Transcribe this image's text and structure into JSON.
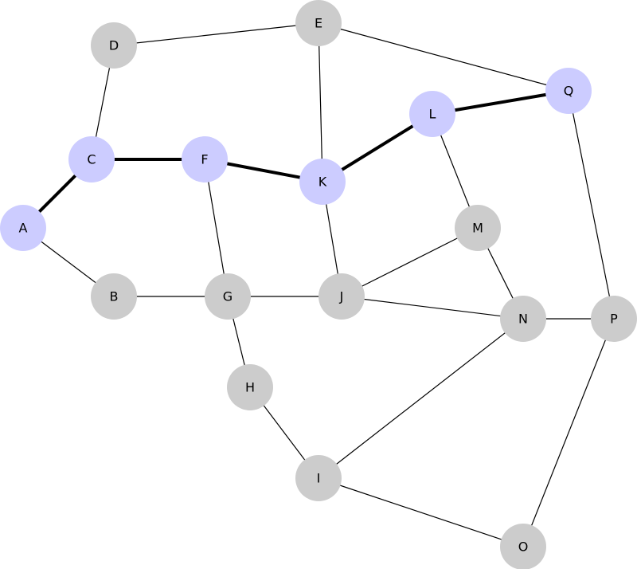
{
  "graph": {
    "colors": {
      "node_default": "#cccccc",
      "node_highlight": "#ccccff",
      "edge": "#000000"
    },
    "nodes": [
      {
        "id": "A",
        "label": "A",
        "highlighted": true
      },
      {
        "id": "B",
        "label": "B",
        "highlighted": false
      },
      {
        "id": "C",
        "label": "C",
        "highlighted": true
      },
      {
        "id": "D",
        "label": "D",
        "highlighted": false
      },
      {
        "id": "E",
        "label": "E",
        "highlighted": false
      },
      {
        "id": "F",
        "label": "F",
        "highlighted": true
      },
      {
        "id": "G",
        "label": "G",
        "highlighted": false
      },
      {
        "id": "H",
        "label": "H",
        "highlighted": false
      },
      {
        "id": "I",
        "label": "I",
        "highlighted": false
      },
      {
        "id": "J",
        "label": "J",
        "highlighted": false
      },
      {
        "id": "K",
        "label": "K",
        "highlighted": true
      },
      {
        "id": "L",
        "label": "L",
        "highlighted": true
      },
      {
        "id": "M",
        "label": "M",
        "highlighted": false
      },
      {
        "id": "N",
        "label": "N",
        "highlighted": false
      },
      {
        "id": "O",
        "label": "O",
        "highlighted": false
      },
      {
        "id": "P",
        "label": "P",
        "highlighted": false
      },
      {
        "id": "Q",
        "label": "Q",
        "highlighted": true
      }
    ],
    "edges": [
      {
        "from": "A",
        "to": "B",
        "highlighted": false
      },
      {
        "from": "A",
        "to": "C",
        "highlighted": true
      },
      {
        "from": "C",
        "to": "D",
        "highlighted": false
      },
      {
        "from": "C",
        "to": "F",
        "highlighted": true
      },
      {
        "from": "D",
        "to": "E",
        "highlighted": false
      },
      {
        "from": "E",
        "to": "Q",
        "highlighted": false
      },
      {
        "from": "E",
        "to": "K",
        "highlighted": false
      },
      {
        "from": "F",
        "to": "K",
        "highlighted": true
      },
      {
        "from": "F",
        "to": "G",
        "highlighted": false
      },
      {
        "from": "K",
        "to": "L",
        "highlighted": true
      },
      {
        "from": "L",
        "to": "Q",
        "highlighted": true
      },
      {
        "from": "L",
        "to": "M",
        "highlighted": false
      },
      {
        "from": "K",
        "to": "J",
        "highlighted": false
      },
      {
        "from": "B",
        "to": "G",
        "highlighted": false
      },
      {
        "from": "G",
        "to": "J",
        "highlighted": false
      },
      {
        "from": "G",
        "to": "H",
        "highlighted": false
      },
      {
        "from": "H",
        "to": "I",
        "highlighted": false
      },
      {
        "from": "I",
        "to": "N",
        "highlighted": false
      },
      {
        "from": "I",
        "to": "O",
        "highlighted": false
      },
      {
        "from": "J",
        "to": "M",
        "highlighted": false
      },
      {
        "from": "J",
        "to": "N",
        "highlighted": false
      },
      {
        "from": "M",
        "to": "N",
        "highlighted": false
      },
      {
        "from": "N",
        "to": "P",
        "highlighted": false
      },
      {
        "from": "Q",
        "to": "P",
        "highlighted": false
      },
      {
        "from": "P",
        "to": "O",
        "highlighted": false
      }
    ]
  }
}
